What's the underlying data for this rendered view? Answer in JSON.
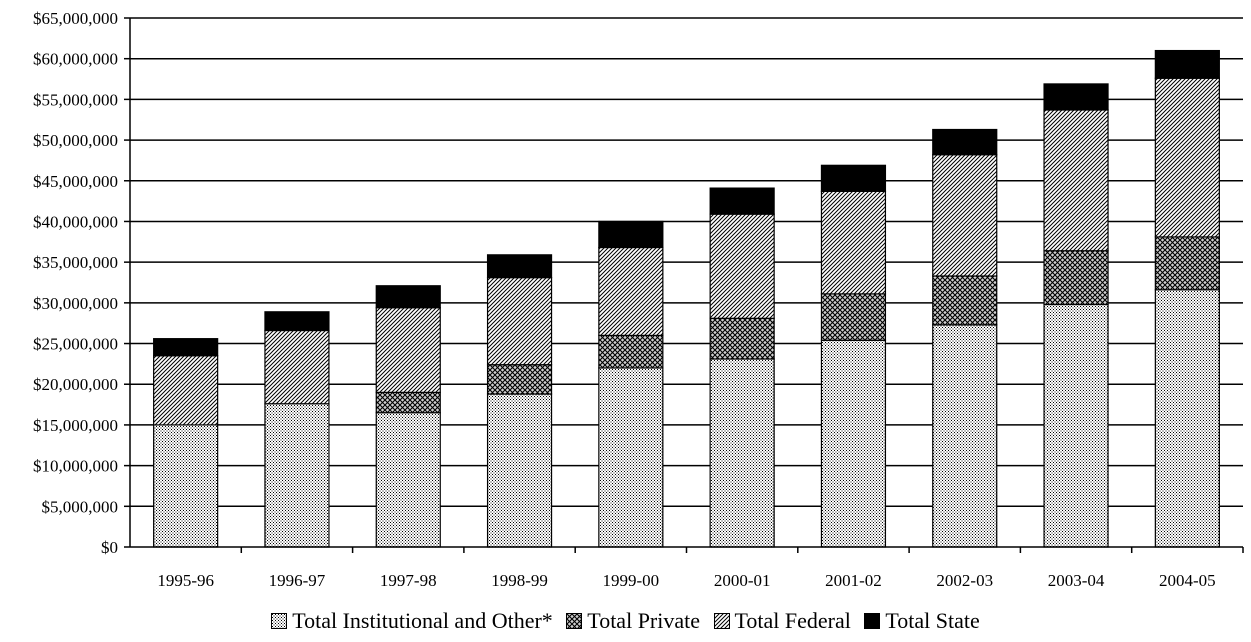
{
  "chart_data": {
    "type": "bar",
    "stacked": true,
    "title": "",
    "xlabel": "",
    "ylabel": "",
    "categories": [
      "1995-96",
      "1996-97",
      "1997-98",
      "1998-99",
      "1999-00",
      "2000-01",
      "2001-02",
      "2002-03",
      "2003-04",
      "2004-05"
    ],
    "series": [
      {
        "name": "Total Institutional and Other*",
        "pattern": "dots",
        "values": [
          15000000,
          17600000,
          16500000,
          18800000,
          22000000,
          23100000,
          25400000,
          27300000,
          29800000,
          31600000
        ]
      },
      {
        "name": "Total Private",
        "pattern": "crosshatch",
        "values": [
          0,
          0,
          2500000,
          3600000,
          4000000,
          5000000,
          5700000,
          6000000,
          6600000,
          6500000
        ]
      },
      {
        "name": "Total Federal",
        "pattern": "diagonal",
        "values": [
          8500000,
          9000000,
          10400000,
          10700000,
          10800000,
          12800000,
          12600000,
          14900000,
          17300000,
          19500000
        ]
      },
      {
        "name": "Total State",
        "pattern": "solid",
        "values": [
          2100000,
          2300000,
          2700000,
          2800000,
          3200000,
          3200000,
          3200000,
          3100000,
          3200000,
          3400000
        ]
      }
    ],
    "y_ticks": [
      "$0",
      "$5,000,000",
      "$10,000,000",
      "$15,000,000",
      "$20,000,000",
      "$25,000,000",
      "$30,000,000",
      "$35,000,000",
      "$40,000,000",
      "$45,000,000",
      "$50,000,000",
      "$55,000,000",
      "$60,000,000",
      "$65,000,000"
    ],
    "ylim": [
      0,
      65000000
    ],
    "grid": true,
    "legend_position": "bottom"
  }
}
